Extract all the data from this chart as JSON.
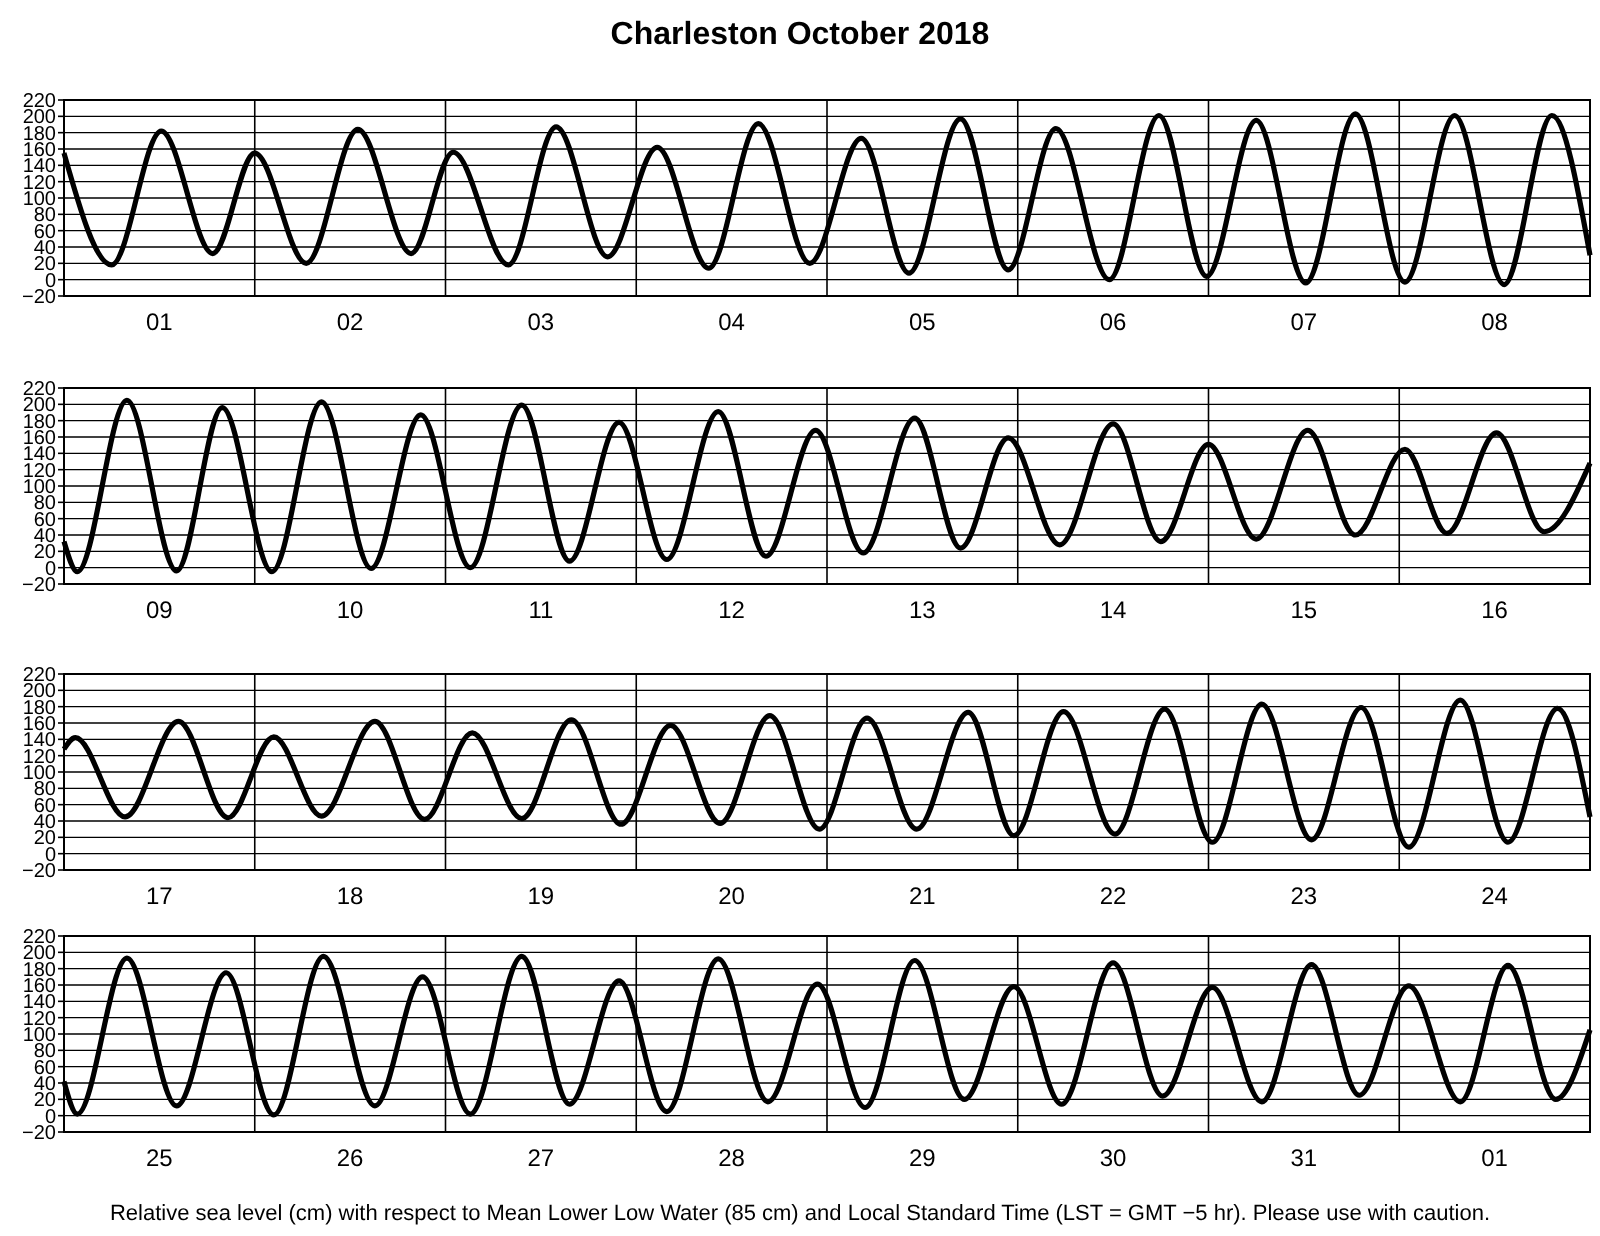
{
  "chart_data": [
    {
      "type": "line",
      "title": "Charleston October 2018",
      "xlim": [
        "2018-10-01",
        "2018-10-09"
      ],
      "ylim": [
        -20,
        220
      ],
      "grid": true,
      "yticks": [
        -20,
        0,
        20,
        40,
        60,
        80,
        100,
        120,
        140,
        160,
        180,
        200,
        220
      ],
      "xticks": [
        {
          "value": "2018-10-02",
          "label": null
        },
        {
          "value": "2018-10-03",
          "label": null
        },
        {
          "value": "2018-10-04",
          "label": null
        },
        {
          "value": "2018-10-05",
          "label": null
        },
        {
          "value": "2018-10-06",
          "label": null
        },
        {
          "value": "2018-10-07",
          "label": null
        },
        {
          "value": "2018-10-08",
          "label": null
        },
        {
          "value": "2018-10-01T12:00",
          "label": "01"
        },
        {
          "value": "2018-10-02T12:00",
          "label": "02"
        },
        {
          "value": "2018-10-03T12:00",
          "label": "03"
        },
        {
          "value": "2018-10-04T12:00",
          "label": "04"
        },
        {
          "value": "2018-10-05T12:00",
          "label": "05"
        },
        {
          "value": "2018-10-06T12:00",
          "label": "06"
        },
        {
          "value": "2018-10-07T12:00",
          "label": "07"
        },
        {
          "value": "2018-10-08T12:00",
          "label": "08"
        }
      ],
      "series": [
        {
          "color": "#000000",
          "x": [
            "2018-10-01T00:00",
            "2018-10-01T06:00",
            "2018-10-01T12:14",
            "2018-10-01T18:43",
            "2018-10-02T00:00",
            "2018-10-02T06:29",
            "2018-10-02T12:58",
            "2018-10-02T19:41",
            "2018-10-03T00:58",
            "2018-10-03T07:55",
            "2018-10-03T13:55",
            "2018-10-03T20:24",
            "2018-10-04T02:38",
            "2018-10-04T09:07",
            "2018-10-04T15:22",
            "2018-10-04T21:50",
            "2018-10-05T04:19",
            "2018-10-05T10:19",
            "2018-10-05T16:48",
            "2018-10-05T22:48",
            "2018-10-06T04:48",
            "2018-10-06T11:31",
            "2018-10-06T17:46",
            "2018-10-06T23:46",
            "2018-10-07T06:00",
            "2018-10-07T12:14",
            "2018-10-07T18:29",
            "2018-10-08T00:43",
            "2018-10-08T06:58",
            "2018-10-08T13:12",
            "2018-10-08T19:12",
            "2018-10-09T00:00"
          ],
          "values": [
            155,
            18,
            182,
            32,
            155,
            20,
            184,
            32,
            156,
            18,
            187,
            28,
            162,
            14,
            191,
            20,
            173,
            8,
            197,
            12,
            185,
            0,
            201,
            4,
            195,
            -4,
            203,
            -3,
            201,
            -6,
            201,
            30
          ]
        }
      ]
    },
    {
      "type": "line",
      "xlim": [
        "2018-10-09",
        "2018-10-17"
      ],
      "ylim": [
        -20,
        220
      ],
      "grid": true,
      "yticks": [
        -20,
        0,
        20,
        40,
        60,
        80,
        100,
        120,
        140,
        160,
        180,
        200,
        220
      ],
      "xticks": [
        {
          "value": "2018-10-10",
          "label": null
        },
        {
          "value": "2018-10-11",
          "label": null
        },
        {
          "value": "2018-10-12",
          "label": null
        },
        {
          "value": "2018-10-13",
          "label": null
        },
        {
          "value": "2018-10-14",
          "label": null
        },
        {
          "value": "2018-10-15",
          "label": null
        },
        {
          "value": "2018-10-16",
          "label": null
        },
        {
          "value": "2018-10-09T12:00",
          "label": "09"
        },
        {
          "value": "2018-10-10T12:00",
          "label": "10"
        },
        {
          "value": "2018-10-11T12:00",
          "label": "11"
        },
        {
          "value": "2018-10-12T12:00",
          "label": "12"
        },
        {
          "value": "2018-10-13T12:00",
          "label": "13"
        },
        {
          "value": "2018-10-14T12:00",
          "label": "14"
        },
        {
          "value": "2018-10-15T12:00",
          "label": "15"
        },
        {
          "value": "2018-10-16T12:00",
          "label": "16"
        }
      ],
      "series": [
        {
          "color": "#000000",
          "x": [
            "2018-10-09T00:00",
            "2018-10-09T01:41",
            "2018-10-09T07:55",
            "2018-10-09T14:10",
            "2018-10-09T19:55",
            "2018-10-10T02:10",
            "2018-10-10T08:24",
            "2018-10-10T14:38",
            "2018-10-10T20:53",
            "2018-10-11T03:07",
            "2018-10-11T09:36",
            "2018-10-11T15:36",
            "2018-10-11T21:50",
            "2018-10-12T03:50",
            "2018-10-12T10:19",
            "2018-10-12T16:19",
            "2018-10-12T22:34",
            "2018-10-13T04:34",
            "2018-10-13T11:02",
            "2018-10-13T16:48",
            "2018-10-13T22:48",
            "2018-10-14T05:17",
            "2018-10-14T12:00",
            "2018-10-14T18:00",
            "2018-10-15T00:00",
            "2018-10-15T06:00",
            "2018-10-15T12:29",
            "2018-10-15T18:29",
            "2018-10-16T00:43",
            "2018-10-16T06:00",
            "2018-10-16T12:14",
            "2018-10-16T18:14",
            "2018-10-17T00:00"
          ],
          "values": [
            32,
            -5,
            205,
            -4,
            196,
            -5,
            203,
            -1,
            187,
            0,
            199,
            8,
            178,
            10,
            191,
            14,
            168,
            18,
            183,
            24,
            159,
            28,
            176,
            32,
            151,
            35,
            168,
            40,
            145,
            42,
            165,
            44,
            128
          ]
        }
      ]
    },
    {
      "type": "line",
      "xlim": [
        "2018-10-17",
        "2018-10-25"
      ],
      "ylim": [
        -20,
        220
      ],
      "grid": true,
      "yticks": [
        -20,
        0,
        20,
        40,
        60,
        80,
        100,
        120,
        140,
        160,
        180,
        200,
        220
      ],
      "xticks": [
        {
          "value": "2018-10-18",
          "label": null
        },
        {
          "value": "2018-10-19",
          "label": null
        },
        {
          "value": "2018-10-20",
          "label": null
        },
        {
          "value": "2018-10-21",
          "label": null
        },
        {
          "value": "2018-10-22",
          "label": null
        },
        {
          "value": "2018-10-23",
          "label": null
        },
        {
          "value": "2018-10-24",
          "label": null
        },
        {
          "value": "2018-10-17T12:00",
          "label": "17"
        },
        {
          "value": "2018-10-18T12:00",
          "label": "18"
        },
        {
          "value": "2018-10-19T12:00",
          "label": "19"
        },
        {
          "value": "2018-10-20T12:00",
          "label": "20"
        },
        {
          "value": "2018-10-21T12:00",
          "label": "21"
        },
        {
          "value": "2018-10-22T12:00",
          "label": "22"
        },
        {
          "value": "2018-10-23T12:00",
          "label": "23"
        },
        {
          "value": "2018-10-24T12:00",
          "label": "24"
        }
      ],
      "series": [
        {
          "color": "#000000",
          "x": [
            "2018-10-17T00:00",
            "2018-10-17T01:26",
            "2018-10-17T07:41",
            "2018-10-17T14:24",
            "2018-10-17T20:38",
            "2018-10-18T02:24",
            "2018-10-18T08:24",
            "2018-10-18T15:07",
            "2018-10-18T21:22",
            "2018-10-19T03:22",
            "2018-10-19T09:36",
            "2018-10-19T15:50",
            "2018-10-19T22:05",
            "2018-10-20T04:19",
            "2018-10-20T10:34",
            "2018-10-20T16:48",
            "2018-10-20T23:02",
            "2018-10-21T05:02",
            "2018-10-21T11:17",
            "2018-10-21T17:46",
            "2018-10-21T23:31",
            "2018-10-22T05:46",
            "2018-10-22T12:14",
            "2018-10-22T18:29",
            "2018-10-23T00:29",
            "2018-10-23T06:43",
            "2018-10-23T12:58",
            "2018-10-23T19:12",
            "2018-10-24T01:12",
            "2018-10-24T07:41",
            "2018-10-24T13:41",
            "2018-10-24T19:55",
            "2018-10-25T00:00"
          ],
          "values": [
            128,
            142,
            45,
            162,
            44,
            143,
            46,
            162,
            42,
            148,
            43,
            164,
            36,
            157,
            37,
            169,
            30,
            166,
            30,
            173,
            22,
            174,
            24,
            177,
            14,
            183,
            17,
            179,
            8,
            188,
            14,
            178,
            45
          ]
        }
      ]
    },
    {
      "type": "line",
      "xlim": [
        "2018-10-25",
        "2018-11-02"
      ],
      "ylim": [
        -20,
        220
      ],
      "grid": true,
      "yticks": [
        -20,
        0,
        20,
        40,
        60,
        80,
        100,
        120,
        140,
        160,
        180,
        200,
        220
      ],
      "xticks": [
        {
          "value": "2018-10-26",
          "label": null
        },
        {
          "value": "2018-10-27",
          "label": null
        },
        {
          "value": "2018-10-28",
          "label": null
        },
        {
          "value": "2018-10-29",
          "label": null
        },
        {
          "value": "2018-10-30",
          "label": null
        },
        {
          "value": "2018-10-31",
          "label": null
        },
        {
          "value": "2018-11-01",
          "label": null
        },
        {
          "value": "2018-10-25T12:00",
          "label": "25"
        },
        {
          "value": "2018-10-26T12:00",
          "label": "26"
        },
        {
          "value": "2018-10-27T12:00",
          "label": "27"
        },
        {
          "value": "2018-10-28T12:00",
          "label": "28"
        },
        {
          "value": "2018-10-29T12:00",
          "label": "29"
        },
        {
          "value": "2018-10-30T12:00",
          "label": "30"
        },
        {
          "value": "2018-10-31T12:00",
          "label": "31"
        },
        {
          "value": "2018-11-01T12:00",
          "label": "01"
        }
      ],
      "annotations": [
        "Relative sea level (cm) with respect to Mean Lower Low Water (85 cm) and Local Standard Time (LST = GMT −5 hr). Please use with caution."
      ],
      "series": [
        {
          "color": "#000000",
          "x": [
            "2018-10-25T00:00",
            "2018-10-25T01:41",
            "2018-10-25T07:55",
            "2018-10-25T14:10",
            "2018-10-25T20:24",
            "2018-10-26T02:24",
            "2018-10-26T08:38",
            "2018-10-26T15:07",
            "2018-10-26T21:07",
            "2018-10-27T03:07",
            "2018-10-27T09:36",
            "2018-10-27T15:36",
            "2018-10-27T21:50",
            "2018-10-28T03:50",
            "2018-10-28T10:19",
            "2018-10-28T16:34",
            "2018-10-28T22:48",
            "2018-10-29T04:48",
            "2018-10-29T11:02",
            "2018-10-29T17:17",
            "2018-10-29T23:31",
            "2018-10-30T05:31",
            "2018-10-30T12:00",
            "2018-10-30T18:14",
            "2018-10-31T00:29",
            "2018-10-31T06:43",
            "2018-10-31T12:58",
            "2018-10-31T18:58",
            "2018-11-01T01:12",
            "2018-11-01T07:41",
            "2018-11-01T13:41",
            "2018-11-01T19:41",
            "2018-11-02T00:00"
          ],
          "values": [
            42,
            2,
            193,
            12,
            175,
            1,
            195,
            12,
            170,
            2,
            195,
            14,
            165,
            5,
            192,
            17,
            161,
            10,
            190,
            20,
            158,
            14,
            187,
            24,
            157,
            17,
            185,
            25,
            159,
            17,
            184,
            20,
            105
          ]
        }
      ]
    }
  ]
}
